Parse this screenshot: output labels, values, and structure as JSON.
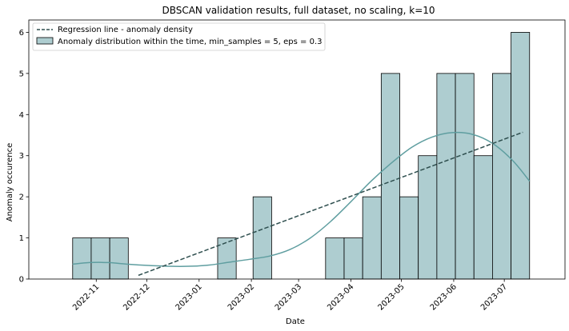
{
  "chart_data": {
    "type": "histogram",
    "title": "DBSCAN validation results, full dataset, no scaling, k=10",
    "xlabel": "Date",
    "ylabel": "Anomaly occurence",
    "ylim": [
      0,
      6.3
    ],
    "yticks": [
      0,
      1,
      2,
      3,
      4,
      5,
      6
    ],
    "xlim": [
      "2022-09-22",
      "2023-08-06"
    ],
    "xticks": [
      {
        "date": "2022-11-01",
        "label": "2022-11"
      },
      {
        "date": "2022-12-01",
        "label": "2022-12"
      },
      {
        "date": "2023-01-01",
        "label": "2023-01"
      },
      {
        "date": "2023-02-01",
        "label": "2023-02"
      },
      {
        "date": "2023-03-01",
        "label": "2023-03"
      },
      {
        "date": "2023-04-01",
        "label": "2023-04"
      },
      {
        "date": "2023-05-01",
        "label": "2023-05"
      },
      {
        "date": "2023-06-01",
        "label": "2023-06"
      },
      {
        "date": "2023-07-01",
        "label": "2023-07"
      }
    ],
    "bars": [
      {
        "start": "2022-10-18",
        "end": "2022-10-29",
        "value": 1
      },
      {
        "start": "2022-10-29",
        "end": "2022-11-09",
        "value": 1
      },
      {
        "start": "2022-11-09",
        "end": "2022-11-20",
        "value": 1
      },
      {
        "start": "2023-01-12",
        "end": "2023-01-23",
        "value": 1
      },
      {
        "start": "2023-02-02",
        "end": "2023-02-13",
        "value": 2
      },
      {
        "start": "2023-03-17",
        "end": "2023-03-28",
        "value": 1
      },
      {
        "start": "2023-03-28",
        "end": "2023-04-08",
        "value": 1
      },
      {
        "start": "2023-04-08",
        "end": "2023-04-19",
        "value": 2
      },
      {
        "start": "2023-04-19",
        "end": "2023-04-30",
        "value": 5
      },
      {
        "start": "2023-04-30",
        "end": "2023-05-11",
        "value": 2
      },
      {
        "start": "2023-05-11",
        "end": "2023-05-22",
        "value": 3
      },
      {
        "start": "2023-05-22",
        "end": "2023-06-02",
        "value": 5
      },
      {
        "start": "2023-06-02",
        "end": "2023-06-13",
        "value": 5
      },
      {
        "start": "2023-06-13",
        "end": "2023-06-24",
        "value": 3
      },
      {
        "start": "2023-06-24",
        "end": "2023-07-05",
        "value": 5
      },
      {
        "start": "2023-07-05",
        "end": "2023-07-16",
        "value": 6
      }
    ],
    "regression_line": {
      "name": "Regression line - anomaly density",
      "points": [
        {
          "date": "2022-11-26",
          "value": 0.09
        },
        {
          "date": "2023-07-12",
          "value": 3.57
        }
      ]
    },
    "kde_curve": {
      "points": [
        {
          "date": "2022-10-18",
          "value": 0.36
        },
        {
          "date": "2022-10-28",
          "value": 0.4
        },
        {
          "date": "2022-11-08",
          "value": 0.4
        },
        {
          "date": "2022-11-20",
          "value": 0.36
        },
        {
          "date": "2022-12-02",
          "value": 0.33
        },
        {
          "date": "2022-12-14",
          "value": 0.31
        },
        {
          "date": "2022-12-26",
          "value": 0.31
        },
        {
          "date": "2023-01-07",
          "value": 0.34
        },
        {
          "date": "2023-01-19",
          "value": 0.41
        },
        {
          "date": "2023-01-31",
          "value": 0.48
        },
        {
          "date": "2023-02-12",
          "value": 0.56
        },
        {
          "date": "2023-02-24",
          "value": 0.72
        },
        {
          "date": "2023-03-08",
          "value": 1.0
        },
        {
          "date": "2023-03-20",
          "value": 1.4
        },
        {
          "date": "2023-04-01",
          "value": 1.88
        },
        {
          "date": "2023-04-13",
          "value": 2.38
        },
        {
          "date": "2023-04-25",
          "value": 2.82
        },
        {
          "date": "2023-05-07",
          "value": 3.2
        },
        {
          "date": "2023-05-19",
          "value": 3.45
        },
        {
          "date": "2023-05-31",
          "value": 3.56
        },
        {
          "date": "2023-06-12",
          "value": 3.52
        },
        {
          "date": "2023-06-24",
          "value": 3.3
        },
        {
          "date": "2023-07-06",
          "value": 2.88
        },
        {
          "date": "2023-07-16",
          "value": 2.38
        }
      ]
    },
    "legend": {
      "placement": "top-left",
      "entries": [
        "Regression line - anomaly density",
        "Anomaly distribution within the time, min_samples = 5, eps = 0.3"
      ]
    },
    "colors": {
      "bar_fill": "#aecdd0",
      "bar_edge": "#000000",
      "kde": "#5f9ea0",
      "regression": "#2f4f4f"
    },
    "grid": false
  }
}
